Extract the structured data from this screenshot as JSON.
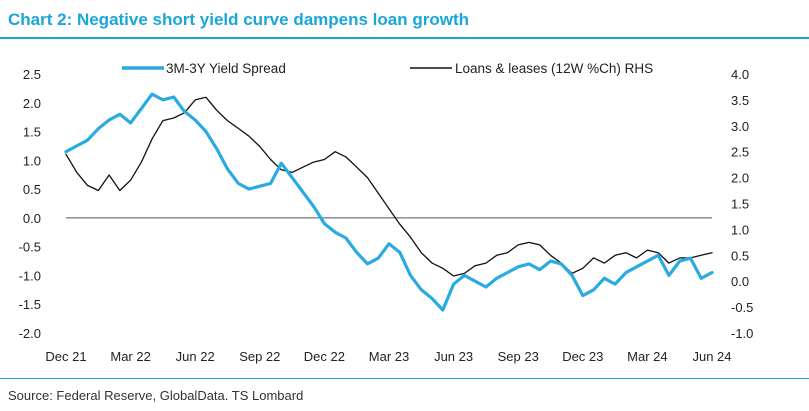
{
  "header": {
    "title": "Chart 2: Negative short yield curve dampens loan growth"
  },
  "footer": {
    "source": "Source: Federal Reserve, GlobalData. TS Lombard"
  },
  "chart_data": {
    "type": "line",
    "x_tick_labels": [
      "Dec 21",
      "Mar 22",
      "Jun 22",
      "Sep 22",
      "Dec 22",
      "Mar 23",
      "Jun 23",
      "Sep 23",
      "Dec 23",
      "Mar 24",
      "Jun 24"
    ],
    "x_range": [
      "Dec 21",
      "Jun 24"
    ],
    "left_axis": {
      "ticks": [
        2.5,
        2.0,
        1.5,
        1.0,
        0.5,
        0.0,
        -0.5,
        -1.0,
        -1.5,
        -2.0
      ],
      "tick_labels": [
        "2.5",
        "2.0",
        "1.5",
        "1.0",
        "0.5",
        "0.0",
        "-0.5",
        "-1.0",
        "-1.5",
        "-2.0"
      ],
      "ylim": [
        -2.0,
        2.5
      ]
    },
    "right_axis": {
      "ticks": [
        4.0,
        3.5,
        3.0,
        2.5,
        2.0,
        1.5,
        1.0,
        0.5,
        0.0,
        -0.5,
        -1.0
      ],
      "tick_labels": [
        "4.0",
        "3.5",
        "3.0",
        "2.5",
        "2.0",
        "1.5",
        "1.0",
        "0.5",
        "0.0",
        "-0.5",
        "-1.0"
      ],
      "ylim": [
        -1.0,
        4.0
      ]
    },
    "grid": false,
    "zero_line": true,
    "legend_position": "top",
    "series": [
      {
        "name": "3M-3Y Yield Spread",
        "axis": "left",
        "color": "#29abe2",
        "values": [
          1.15,
          1.25,
          1.35,
          1.55,
          1.7,
          1.8,
          1.65,
          1.9,
          2.15,
          2.05,
          2.1,
          1.85,
          1.7,
          1.5,
          1.2,
          0.85,
          0.6,
          0.5,
          0.55,
          0.6,
          0.95,
          0.7,
          0.45,
          0.2,
          -0.1,
          -0.25,
          -0.35,
          -0.6,
          -0.8,
          -0.7,
          -0.45,
          -0.6,
          -1.0,
          -1.25,
          -1.4,
          -1.6,
          -1.15,
          -1.0,
          -1.1,
          -1.2,
          -1.05,
          -0.95,
          -0.85,
          -0.8,
          -0.9,
          -0.75,
          -0.8,
          -1.0,
          -1.35,
          -1.25,
          -1.05,
          -1.15,
          -0.95,
          -0.85,
          -0.75,
          -0.65,
          -1.0,
          -0.75,
          -0.7,
          -1.05,
          -0.95
        ]
      },
      {
        "name": "Loans & leases (12W %Ch) RHS",
        "axis": "right",
        "color": "#111111",
        "values": [
          2.45,
          2.1,
          1.85,
          1.75,
          2.05,
          1.75,
          1.95,
          2.3,
          2.75,
          3.1,
          3.15,
          3.25,
          3.5,
          3.55,
          3.3,
          3.1,
          2.95,
          2.8,
          2.6,
          2.35,
          2.15,
          2.1,
          2.2,
          2.3,
          2.35,
          2.5,
          2.4,
          2.2,
          2.0,
          1.7,
          1.4,
          1.1,
          0.85,
          0.55,
          0.35,
          0.25,
          0.1,
          0.15,
          0.3,
          0.35,
          0.5,
          0.55,
          0.7,
          0.75,
          0.7,
          0.5,
          0.35,
          0.15,
          0.25,
          0.45,
          0.35,
          0.5,
          0.55,
          0.45,
          0.6,
          0.55,
          0.35,
          0.45,
          0.45,
          0.5,
          0.55
        ]
      }
    ]
  }
}
